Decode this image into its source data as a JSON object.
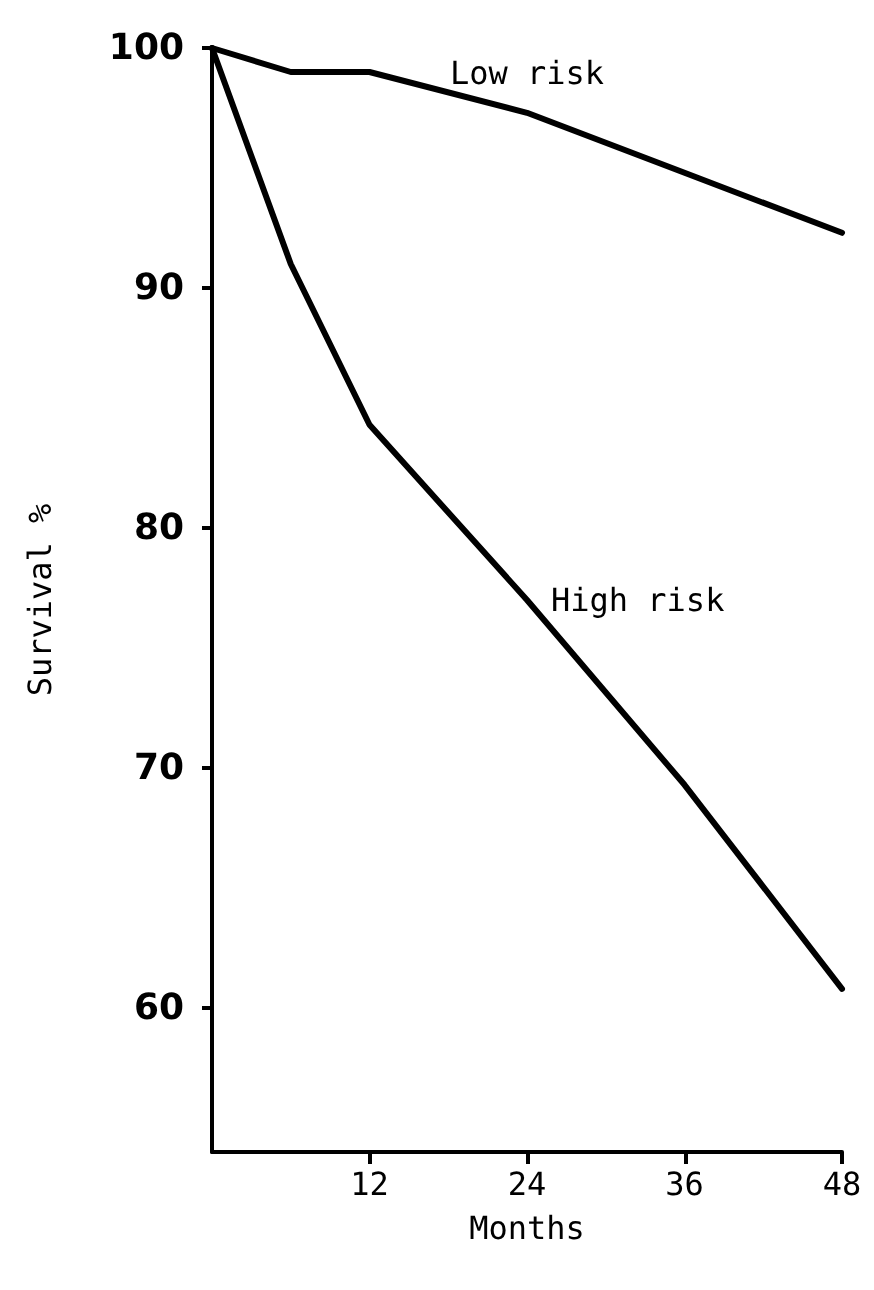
{
  "chart_data": {
    "type": "line",
    "xlabel": "Months",
    "ylabel": "Survival %",
    "xlim": [
      0,
      48
    ],
    "xticks": [
      12,
      24,
      36,
      48
    ],
    "ylim": [
      54,
      100
    ],
    "yticks": [
      60,
      70,
      80,
      90,
      100
    ],
    "grid": false,
    "legend": false,
    "marker": "none",
    "line_style": "solid",
    "series": [
      {
        "name": "Low risk",
        "color": "#000000",
        "x": [
          0,
          6,
          12,
          24,
          36,
          48
        ],
        "values": [
          100,
          99,
          99,
          97.3,
          94.8,
          92.3
        ]
      },
      {
        "name": "High risk",
        "color": "#000000",
        "x": [
          0,
          6,
          12,
          24,
          36,
          48
        ],
        "values": [
          100,
          91,
          84.3,
          77,
          69.3,
          60.8
        ]
      }
    ]
  }
}
